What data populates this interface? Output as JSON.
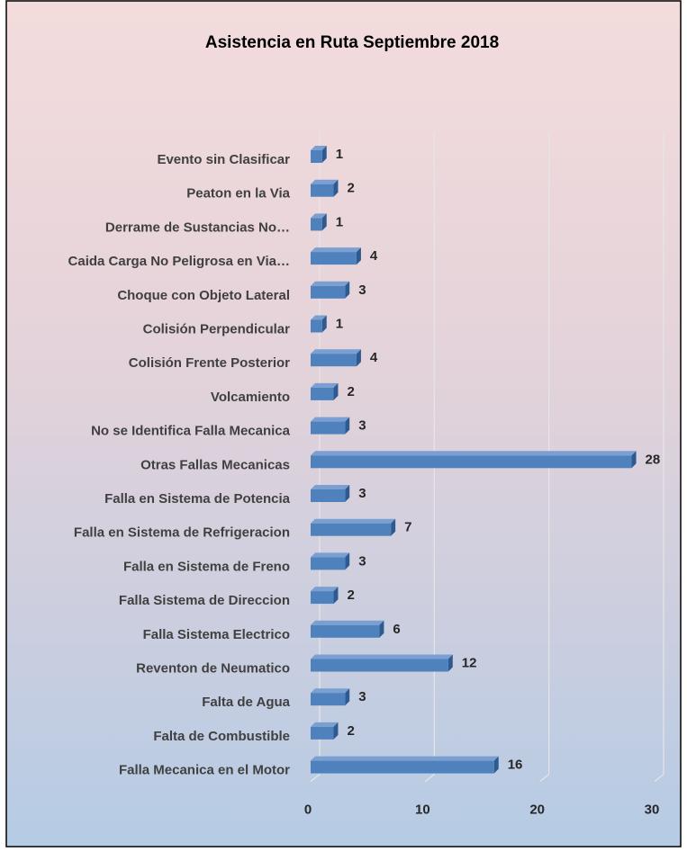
{
  "chart_data": {
    "type": "bar",
    "orientation": "horizontal",
    "title": "Asistencia en Ruta Septiembre 2018",
    "categories": [
      "Evento sin Clasificar",
      "Peaton en la Via",
      "Derrame de Sustancias No…",
      "Caida Carga No Peligrosa en Via…",
      "Choque con Objeto Lateral",
      "Colisión Perpendicular",
      "Colisión Frente Posterior",
      "Volcamiento",
      "No se Identifica Falla Mecanica",
      "Otras Fallas Mecanicas",
      "Falla en Sistema de Potencia",
      "Falla en Sistema de Refrigeracion",
      "Falla en Sistema de Freno",
      "Falla Sistema de Direccion",
      "Falla Sistema Electrico",
      "Reventon de Neumatico",
      "Falta de Agua",
      "Falta de Combustible",
      "Falla Mecanica en el Motor"
    ],
    "values": [
      1,
      2,
      1,
      4,
      3,
      1,
      4,
      2,
      3,
      28,
      3,
      7,
      3,
      2,
      6,
      12,
      3,
      2,
      16
    ],
    "color": "#4f81bd",
    "xlim": [
      0,
      30
    ],
    "xticks": [
      0,
      10,
      20,
      30
    ],
    "grid": true
  }
}
